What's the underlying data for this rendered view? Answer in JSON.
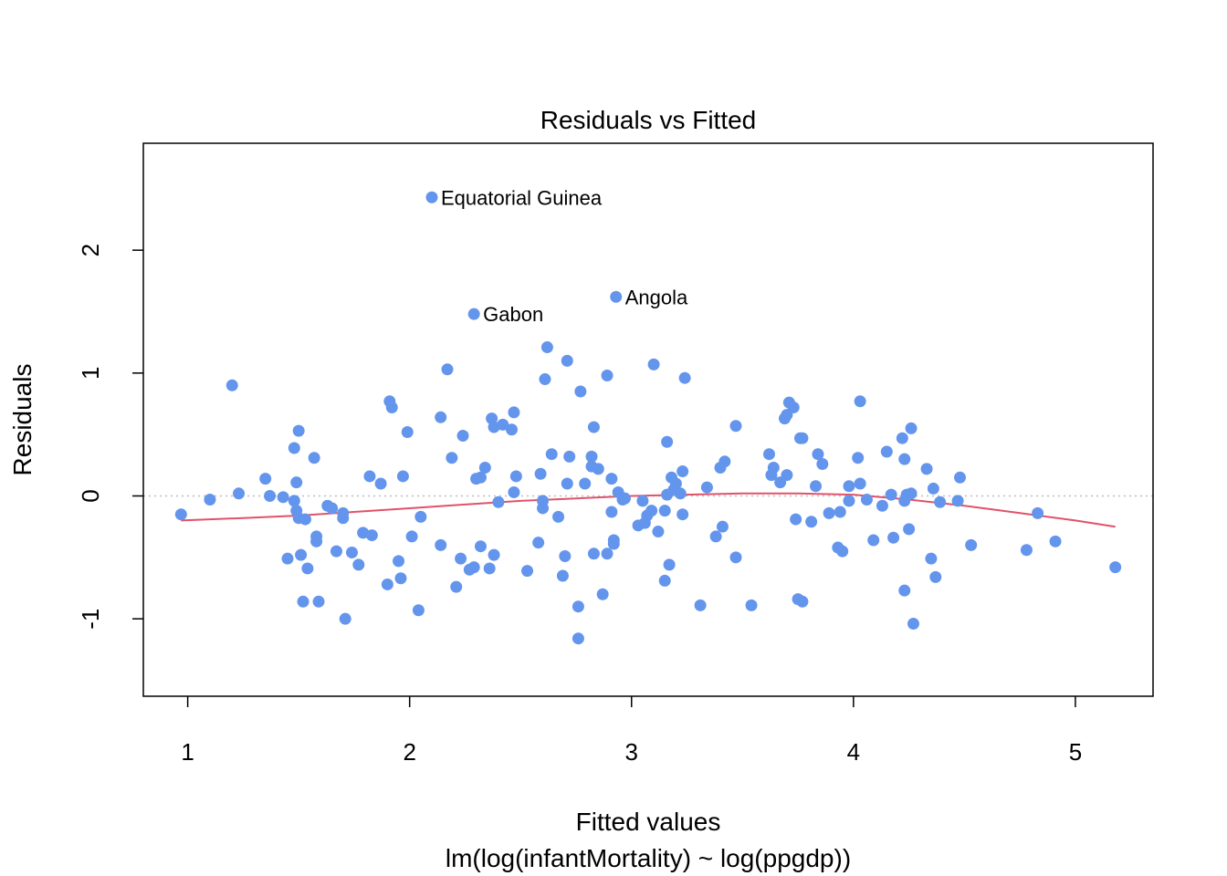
{
  "chart_data": {
    "type": "scatter",
    "title": "Residuals vs Fitted",
    "xlabel": "Fitted values",
    "subtitle": "lm(log(infantMortality) ~ log(ppgdp))",
    "ylabel": "Residuals",
    "xlim": [
      0.8,
      5.35
    ],
    "ylim": [
      -1.63,
      2.87
    ],
    "xticks": [
      "1",
      "2",
      "3",
      "4",
      "5"
    ],
    "yticks": [
      "-1",
      "0",
      "1",
      "2"
    ],
    "grid": false,
    "reference_line": 0,
    "point_color": "#6495ED",
    "smooth_color": "#DF536B",
    "reference_color": "#BEBEBE",
    "labeled_points": [
      {
        "x": 2.1,
        "y": 2.43,
        "label": "Equatorial Guinea"
      },
      {
        "x": 2.93,
        "y": 1.62,
        "label": "Angola"
      },
      {
        "x": 2.29,
        "y": 1.48,
        "label": "Gabon"
      }
    ],
    "points": [
      [
        0.97,
        -0.15
      ],
      [
        1.1,
        -0.03
      ],
      [
        1.2,
        0.9
      ],
      [
        1.23,
        0.02
      ],
      [
        1.35,
        0.14
      ],
      [
        1.37,
        0.0
      ],
      [
        1.43,
        -0.01
      ],
      [
        1.45,
        -0.51
      ],
      [
        1.48,
        0.39
      ],
      [
        1.48,
        -0.04
      ],
      [
        1.49,
        0.11
      ],
      [
        1.49,
        -0.12
      ],
      [
        1.5,
        0.53
      ],
      [
        1.5,
        -0.18
      ],
      [
        1.51,
        -0.48
      ],
      [
        1.52,
        -0.86
      ],
      [
        1.53,
        -0.19
      ],
      [
        1.54,
        -0.59
      ],
      [
        1.57,
        0.31
      ],
      [
        1.58,
        -0.33
      ],
      [
        1.58,
        -0.37
      ],
      [
        1.59,
        -0.86
      ],
      [
        1.63,
        -0.08
      ],
      [
        1.65,
        -0.1
      ],
      [
        1.67,
        -0.45
      ],
      [
        1.7,
        -0.14
      ],
      [
        1.7,
        -0.18
      ],
      [
        1.71,
        -1.0
      ],
      [
        1.74,
        -0.46
      ],
      [
        1.77,
        -0.56
      ],
      [
        1.79,
        -0.3
      ],
      [
        1.82,
        0.16
      ],
      [
        1.83,
        -0.32
      ],
      [
        1.87,
        0.1
      ],
      [
        1.9,
        -0.72
      ],
      [
        1.91,
        0.77
      ],
      [
        1.92,
        0.72
      ],
      [
        1.95,
        -0.53
      ],
      [
        1.96,
        -0.67
      ],
      [
        1.97,
        0.16
      ],
      [
        1.99,
        0.52
      ],
      [
        2.01,
        -0.33
      ],
      [
        2.04,
        -0.93
      ],
      [
        2.05,
        -0.17
      ],
      [
        2.14,
        -0.4
      ],
      [
        2.14,
        0.64
      ],
      [
        2.17,
        1.03
      ],
      [
        2.19,
        0.31
      ],
      [
        2.21,
        -0.74
      ],
      [
        2.23,
        -0.51
      ],
      [
        2.24,
        0.49
      ],
      [
        2.27,
        -0.6
      ],
      [
        2.29,
        -0.58
      ],
      [
        2.3,
        0.14
      ],
      [
        2.32,
        -0.41
      ],
      [
        2.32,
        0.15
      ],
      [
        2.34,
        0.23
      ],
      [
        2.36,
        -0.59
      ],
      [
        2.37,
        0.63
      ],
      [
        2.38,
        0.56
      ],
      [
        2.38,
        -0.48
      ],
      [
        2.4,
        -0.05
      ],
      [
        2.42,
        0.58
      ],
      [
        2.46,
        0.54
      ],
      [
        2.47,
        0.68
      ],
      [
        2.47,
        0.03
      ],
      [
        2.48,
        0.16
      ],
      [
        2.53,
        -0.61
      ],
      [
        2.58,
        -0.38
      ],
      [
        2.59,
        0.18
      ],
      [
        2.6,
        -0.04
      ],
      [
        2.6,
        -0.1
      ],
      [
        2.61,
        0.95
      ],
      [
        2.62,
        1.21
      ],
      [
        2.64,
        0.34
      ],
      [
        2.67,
        -0.17
      ],
      [
        2.69,
        -0.65
      ],
      [
        2.7,
        -0.49
      ],
      [
        2.71,
        0.1
      ],
      [
        2.71,
        1.1
      ],
      [
        2.72,
        0.32
      ],
      [
        2.76,
        -0.9
      ],
      [
        2.76,
        -1.16
      ],
      [
        2.77,
        0.85
      ],
      [
        2.79,
        0.1
      ],
      [
        2.82,
        0.32
      ],
      [
        2.82,
        0.24
      ],
      [
        2.83,
        -0.47
      ],
      [
        2.83,
        0.56
      ],
      [
        2.85,
        0.22
      ],
      [
        2.87,
        -0.8
      ],
      [
        2.89,
        -0.47
      ],
      [
        2.89,
        0.98
      ],
      [
        2.91,
        0.14
      ],
      [
        2.91,
        -0.13
      ],
      [
        2.92,
        -0.39
      ],
      [
        2.92,
        -0.36
      ],
      [
        2.94,
        0.03
      ],
      [
        2.96,
        -0.03
      ],
      [
        2.97,
        -0.02
      ],
      [
        3.03,
        -0.24
      ],
      [
        3.05,
        -0.04
      ],
      [
        3.06,
        -0.22
      ],
      [
        3.07,
        -0.16
      ],
      [
        3.09,
        -0.12
      ],
      [
        3.1,
        1.07
      ],
      [
        3.12,
        -0.29
      ],
      [
        3.15,
        -0.12
      ],
      [
        3.15,
        -0.69
      ],
      [
        3.16,
        0.44
      ],
      [
        3.16,
        0.01
      ],
      [
        3.17,
        -0.56
      ],
      [
        3.18,
        0.15
      ],
      [
        3.19,
        0.05
      ],
      [
        3.2,
        0.1
      ],
      [
        3.22,
        0.02
      ],
      [
        3.23,
        0.2
      ],
      [
        3.23,
        -0.15
      ],
      [
        3.24,
        0.96
      ],
      [
        3.31,
        -0.89
      ],
      [
        3.34,
        0.07
      ],
      [
        3.38,
        -0.33
      ],
      [
        3.4,
        0.23
      ],
      [
        3.41,
        -0.25
      ],
      [
        3.42,
        0.28
      ],
      [
        3.47,
        -0.5
      ],
      [
        3.47,
        0.57
      ],
      [
        3.54,
        -0.89
      ],
      [
        3.62,
        0.34
      ],
      [
        3.63,
        0.17
      ],
      [
        3.64,
        0.23
      ],
      [
        3.67,
        0.11
      ],
      [
        3.69,
        0.63
      ],
      [
        3.7,
        0.17
      ],
      [
        3.7,
        0.66
      ],
      [
        3.71,
        0.76
      ],
      [
        3.73,
        0.72
      ],
      [
        3.74,
        -0.19
      ],
      [
        3.75,
        -0.84
      ],
      [
        3.76,
        0.47
      ],
      [
        3.77,
        -0.86
      ],
      [
        3.77,
        0.47
      ],
      [
        3.81,
        -0.21
      ],
      [
        3.83,
        0.08
      ],
      [
        3.84,
        0.34
      ],
      [
        3.86,
        0.26
      ],
      [
        3.89,
        -0.14
      ],
      [
        3.93,
        -0.42
      ],
      [
        3.94,
        -0.13
      ],
      [
        3.95,
        -0.45
      ],
      [
        3.98,
        -0.04
      ],
      [
        3.98,
        0.08
      ],
      [
        4.02,
        0.31
      ],
      [
        4.03,
        0.77
      ],
      [
        4.03,
        0.1
      ],
      [
        4.06,
        -0.03
      ],
      [
        4.09,
        -0.36
      ],
      [
        4.13,
        -0.08
      ],
      [
        4.15,
        0.36
      ],
      [
        4.17,
        0.01
      ],
      [
        4.18,
        -0.34
      ],
      [
        4.22,
        0.47
      ],
      [
        4.23,
        0.3
      ],
      [
        4.23,
        -0.77
      ],
      [
        4.23,
        -0.04
      ],
      [
        4.24,
        0.01
      ],
      [
        4.25,
        -0.27
      ],
      [
        4.26,
        0.02
      ],
      [
        4.26,
        0.55
      ],
      [
        4.27,
        -1.04
      ],
      [
        4.33,
        0.22
      ],
      [
        4.35,
        -0.51
      ],
      [
        4.36,
        0.06
      ],
      [
        4.37,
        -0.66
      ],
      [
        4.39,
        -0.05
      ],
      [
        4.47,
        -0.04
      ],
      [
        4.48,
        0.15
      ],
      [
        4.53,
        -0.4
      ],
      [
        4.78,
        -0.44
      ],
      [
        4.83,
        -0.14
      ],
      [
        4.91,
        -0.37
      ],
      [
        5.18,
        -0.58
      ]
    ],
    "smooth": [
      [
        0.97,
        -0.2
      ],
      [
        1.25,
        -0.18
      ],
      [
        1.5,
        -0.16
      ],
      [
        1.75,
        -0.13
      ],
      [
        2.0,
        -0.1
      ],
      [
        2.25,
        -0.07
      ],
      [
        2.5,
        -0.04
      ],
      [
        2.75,
        -0.02
      ],
      [
        3.0,
        0.0
      ],
      [
        3.25,
        0.01
      ],
      [
        3.5,
        0.02
      ],
      [
        3.75,
        0.02
      ],
      [
        4.0,
        0.01
      ],
      [
        4.25,
        -0.03
      ],
      [
        4.5,
        -0.08
      ],
      [
        4.75,
        -0.14
      ],
      [
        5.0,
        -0.2
      ],
      [
        5.18,
        -0.25
      ]
    ]
  }
}
